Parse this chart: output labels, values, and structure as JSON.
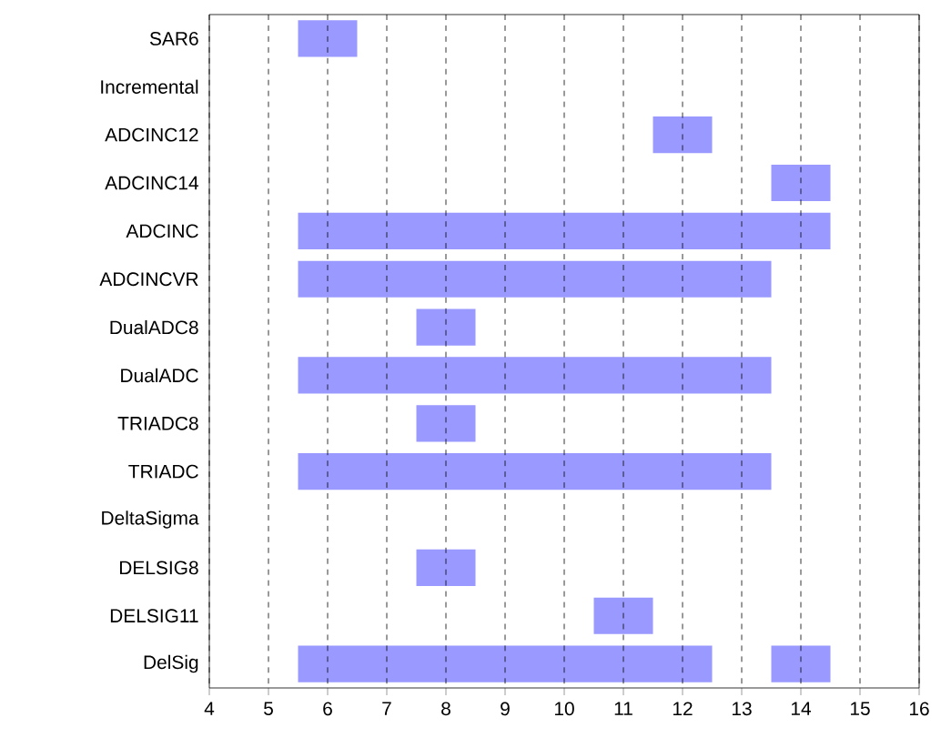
{
  "chart_data": {
    "type": "bar",
    "orientation": "horizontal",
    "categories": [
      "SAR6",
      "Incremental",
      "ADCINC12",
      "ADCINC14",
      "ADCINC",
      "ADCINCVR",
      "DualADC8",
      "DualADC",
      "TRIADC8",
      "TRIADC",
      "DeltaSigma",
      "DELSIG8",
      "DELSIG11",
      "DelSig"
    ],
    "series": [
      {
        "color": "#9999ff",
        "base": [
          5.5,
          null,
          11.5,
          13.5,
          5.5,
          5.5,
          7.5,
          5.5,
          7.5,
          5.5,
          null,
          7.5,
          10.5,
          5.5
        ],
        "values": [
          1,
          null,
          1,
          1,
          9,
          8,
          1,
          8,
          1,
          8,
          null,
          1,
          1,
          7
        ]
      },
      {
        "color": "#9999ff",
        "base": [
          null,
          null,
          null,
          null,
          null,
          null,
          null,
          null,
          null,
          null,
          null,
          null,
          null,
          13.5
        ],
        "values": [
          null,
          null,
          null,
          null,
          null,
          null,
          null,
          null,
          null,
          null,
          null,
          null,
          null,
          1
        ]
      }
    ],
    "xlim": [
      4,
      16
    ],
    "xticks": [
      4,
      5,
      6,
      7,
      8,
      9,
      10,
      11,
      12,
      13,
      14,
      15,
      16
    ],
    "grid": "x"
  }
}
